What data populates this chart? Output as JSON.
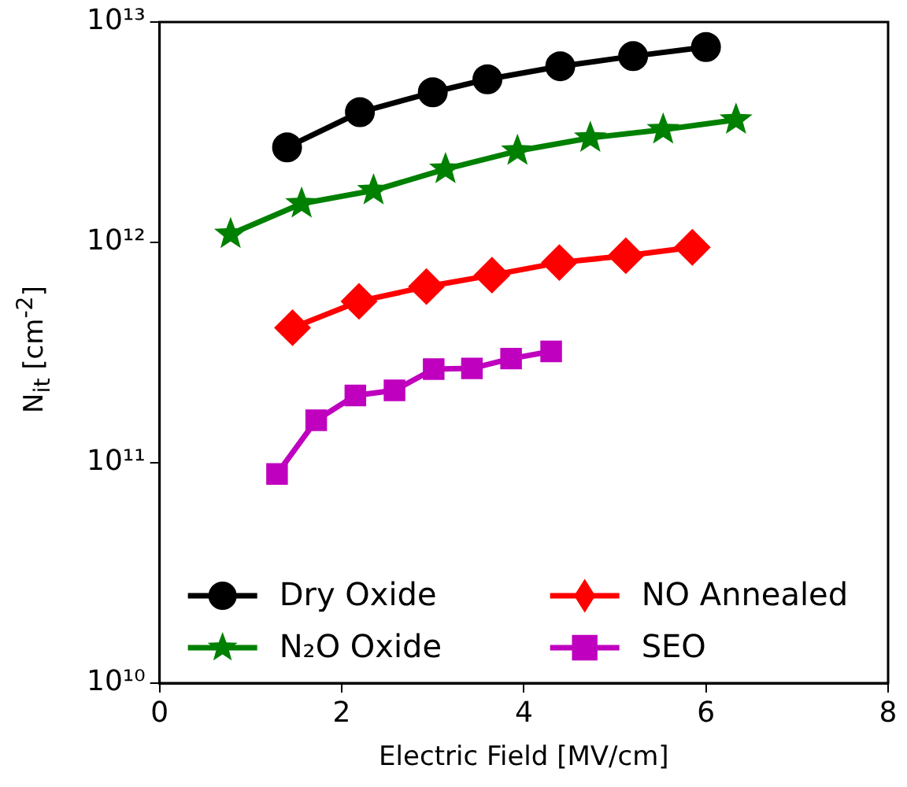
{
  "chart_data": {
    "type": "line",
    "xlabel": "Electric Field [MV/cm]",
    "ylabel": "N$_{it}$ [cm$^{-2}$]",
    "log": "y",
    "xlim": [
      0,
      8
    ],
    "xticks": [
      0,
      2,
      4,
      6,
      8
    ],
    "ylim": [
      10000000000.0,
      10000000000000.0
    ],
    "yticks": [
      {
        "value": 10000000000.0,
        "label": "10¹⁰"
      },
      {
        "value": 100000000000.0,
        "label": "10¹¹"
      },
      {
        "value": 1000000000000.0,
        "label": "10¹²"
      },
      {
        "value": 10000000000000.0,
        "label": "10¹³"
      }
    ],
    "grid": false,
    "legend": "bottom left",
    "line_style": "solid",
    "series": [
      {
        "name": "Dry Oxide",
        "color": "#000000",
        "marker": "circle",
        "x": [
          1.4,
          2.2,
          3.0,
          3.6,
          4.4,
          5.2,
          6.0
        ],
        "values": [
          2700000000000.0,
          3900000000000.0,
          4800000000000.0,
          5500000000000.0,
          6300000000000.0,
          7000000000000.0,
          7700000000000.0
        ]
      },
      {
        "name": "N₂O Oxide",
        "color": "#008000",
        "marker": "star",
        "x": [
          0.78,
          1.56,
          2.35,
          3.14,
          3.93,
          4.73,
          5.53,
          6.33
        ],
        "values": [
          1090000000000.0,
          1500000000000.0,
          1720000000000.0,
          2150000000000.0,
          2600000000000.0,
          2980000000000.0,
          3250000000000.0,
          3600000000000.0
        ]
      },
      {
        "name": "NO Annealed",
        "color": "#ff0000",
        "marker": "diamond",
        "x": [
          1.46,
          2.19,
          2.93,
          3.65,
          4.39,
          5.12,
          5.85
        ],
        "values": [
          410000000000.0,
          540000000000.0,
          630000000000.0,
          710000000000.0,
          810000000000.0,
          870000000000.0,
          950000000000.0
        ]
      },
      {
        "name": "SEO",
        "color": "#bf00bf",
        "marker": "square",
        "x": [
          1.29,
          1.72,
          2.15,
          2.58,
          3.01,
          3.43,
          3.86,
          4.3
        ],
        "values": [
          89000000000.0,
          156000000000.0,
          202000000000.0,
          213000000000.0,
          266000000000.0,
          268000000000.0,
          297000000000.0,
          320000000000.0
        ]
      }
    ]
  }
}
